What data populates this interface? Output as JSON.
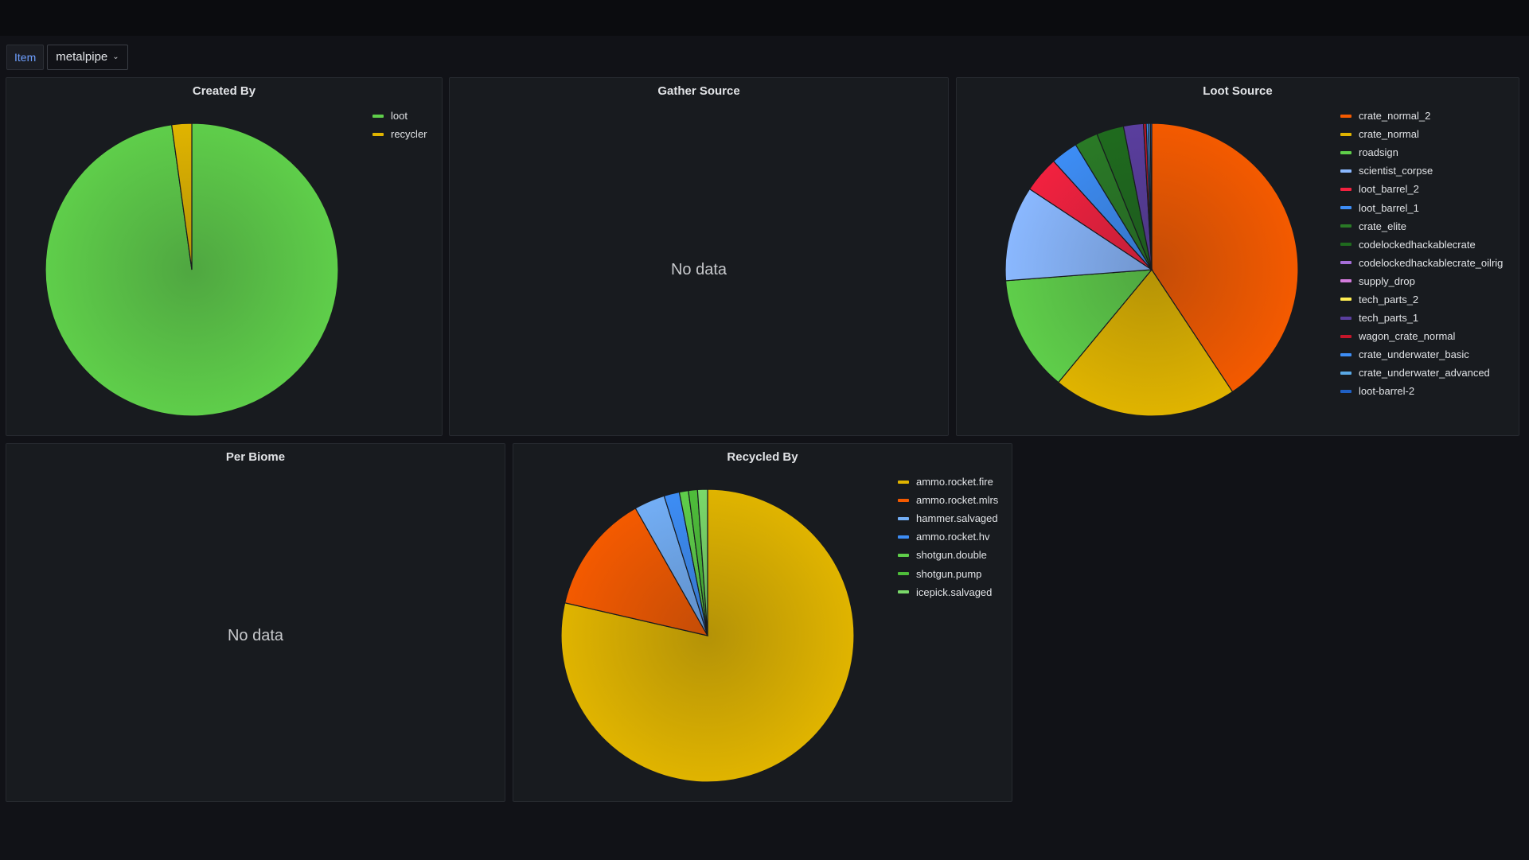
{
  "variables": {
    "label": "Item",
    "value": "metalpipe"
  },
  "panels": {
    "created_by": {
      "title": "Created By"
    },
    "gather_source": {
      "title": "Gather Source",
      "no_data": "No data"
    },
    "loot_source": {
      "title": "Loot Source"
    },
    "per_biome": {
      "title": "Per Biome",
      "no_data": "No data"
    },
    "recycled_by": {
      "title": "Recycled By"
    }
  },
  "chart_data": [
    {
      "type": "pie",
      "title": "Created By",
      "legend_placement": "top-right",
      "slices": [
        {
          "label": "loot",
          "value": 97.8,
          "color": "#5fce4a"
        },
        {
          "label": "recycler",
          "value": 2.2,
          "color": "#e0b400"
        }
      ]
    },
    {
      "type": "pie",
      "title": "Loot Source",
      "legend_placement": "right",
      "slices": [
        {
          "label": "crate_normal_2",
          "value": 40.7,
          "color": "#f45a00"
        },
        {
          "label": "crate_normal",
          "value": 20.3,
          "color": "#e0b400"
        },
        {
          "label": "roadsign",
          "value": 12.8,
          "color": "#5fce4a"
        },
        {
          "label": "scientist_corpse",
          "value": 10.5,
          "color": "#8ab8ff"
        },
        {
          "label": "loot_barrel_2",
          "value": 4.0,
          "color": "#f2213f"
        },
        {
          "label": "loot_barrel_1",
          "value": 3.0,
          "color": "#3d8df5"
        },
        {
          "label": "crate_elite",
          "value": 2.6,
          "color": "#2a7a26"
        },
        {
          "label": "codelockedhackablecrate",
          "value": 3.0,
          "color": "#1f6b1e"
        },
        {
          "label": "codelockedhackablecrate_oilrig",
          "value": 0.0,
          "color": "#a56ed8"
        },
        {
          "label": "supply_drop",
          "value": 0.0,
          "color": "#d37bdc"
        },
        {
          "label": "tech_parts_2",
          "value": 0.0,
          "color": "#ffee52"
        },
        {
          "label": "tech_parts_1",
          "value": 2.2,
          "color": "#5a3e9e"
        },
        {
          "label": "wagon_crate_normal",
          "value": 0.3,
          "color": "#c4162a"
        },
        {
          "label": "crate_underwater_basic",
          "value": 0.25,
          "color": "#3d8df5"
        },
        {
          "label": "crate_underwater_advanced",
          "value": 0.2,
          "color": "#5aa9e6"
        },
        {
          "label": "loot-barrel-2",
          "value": 0.15,
          "color": "#1f60c4"
        }
      ]
    },
    {
      "type": "pie",
      "title": "Recycled By",
      "legend_placement": "top-right",
      "slices": [
        {
          "label": "ammo.rocket.fire",
          "value": 78.6,
          "color": "#e0b400"
        },
        {
          "label": "ammo.rocket.mlrs",
          "value": 13.2,
          "color": "#f45a00"
        },
        {
          "label": "hammer.salvaged",
          "value": 3.4,
          "color": "#73aef5"
        },
        {
          "label": "ammo.rocket.hv",
          "value": 1.7,
          "color": "#3d8df5"
        },
        {
          "label": "shotgun.double",
          "value": 1.0,
          "color": "#5fce4a"
        },
        {
          "label": "shotgun.pump",
          "value": 1.0,
          "color": "#4ebd3a"
        },
        {
          "label": "icepick.salvaged",
          "value": 1.1,
          "color": "#7ad86a"
        }
      ]
    }
  ]
}
